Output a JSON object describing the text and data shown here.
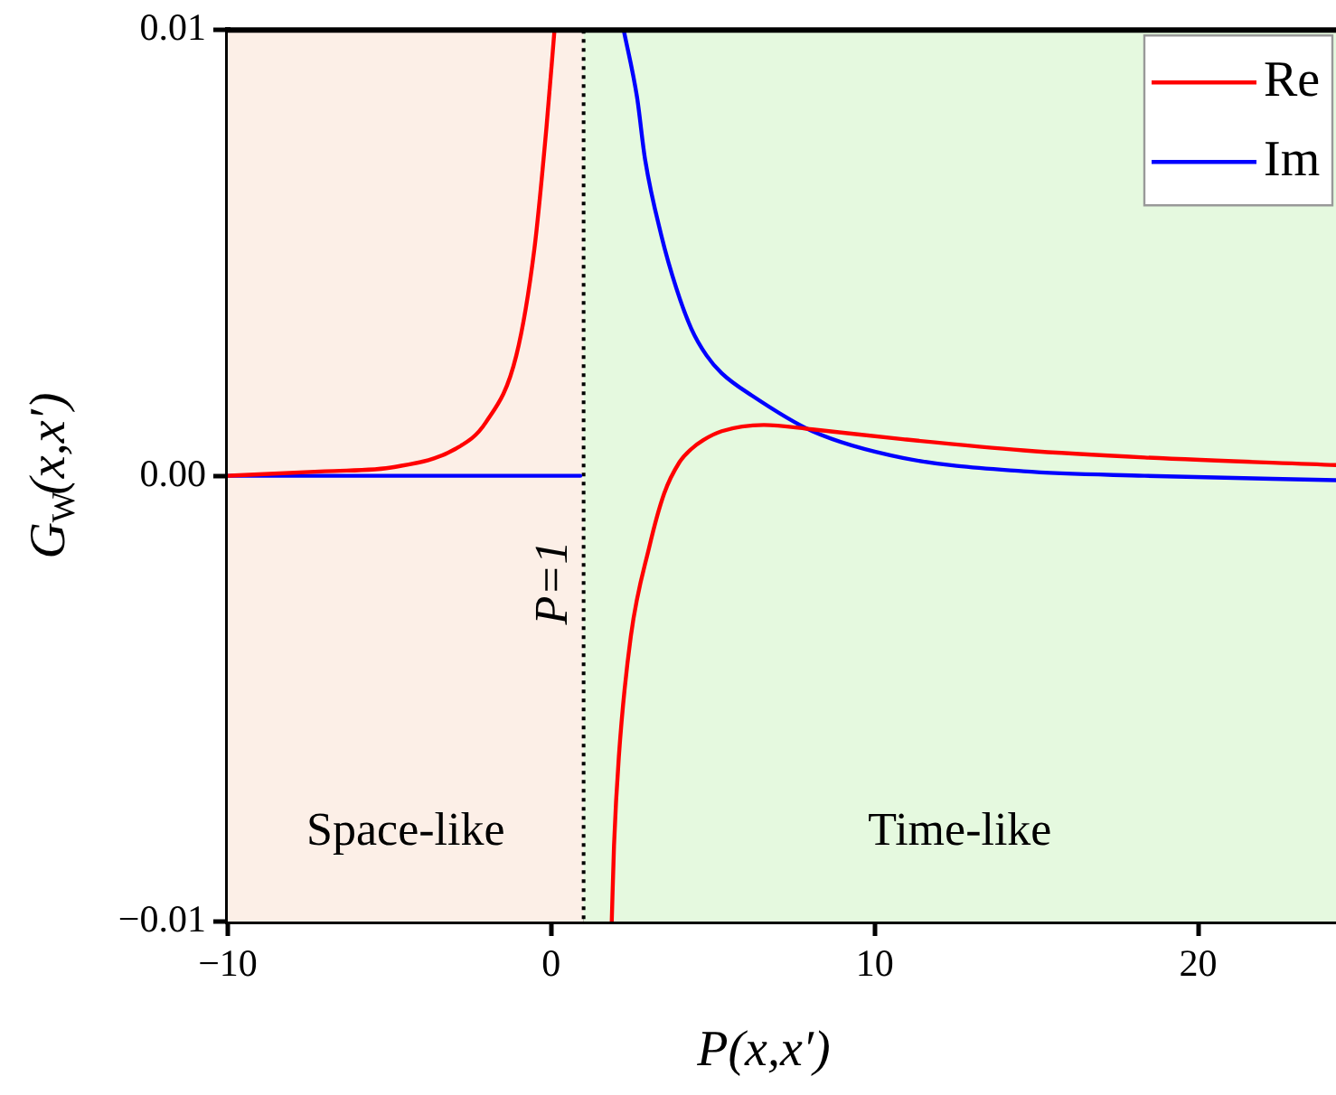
{
  "chart_data": {
    "type": "line",
    "xlabel": "P(x,x′)",
    "ylabel": "G$_{W}$(x,x′)",
    "xlim": [
      -10,
      24.26
    ],
    "xticks": [
      {
        "value": -10,
        "label": "−10"
      },
      0,
      10,
      20
    ],
    "ylim": [
      -0.01,
      0.01
    ],
    "yticks": [
      {
        "value": -0.01,
        "label": "−0.01"
      },
      {
        "value": 0,
        "label": "0.00"
      },
      0.01
    ],
    "series": [
      {
        "name": "Re",
        "color": "#ff0000",
        "x": [
          -10,
          -7,
          -4.82,
          -2.97,
          -2.02,
          -1.08,
          -0.52,
          -0.15,
          0.1,
          1,
          1.87,
          1.94,
          2.09,
          2.46,
          3.03,
          3.49,
          3.96,
          4.33,
          4.7,
          5.27,
          6.57,
          8.07,
          10.87,
          14.6,
          18.34,
          24.26
        ],
        "values": [
          0,
          0.0001,
          0.0002,
          0.0006,
          0.0012,
          0.0027,
          0.0051,
          0.0078,
          0.01,
          null,
          -0.01,
          -0.0083,
          -0.0063,
          -0.0036,
          -0.0016,
          -0.0004,
          0.0003,
          0.0006,
          0.0008,
          0.001,
          0.00114,
          0.00104,
          0.00082,
          0.00057,
          0.00041,
          0.00024
        ]
      },
      {
        "name": "Im",
        "color": "#0000ff",
        "x": [
          -10,
          0.9,
          1,
          2.24,
          2.65,
          2.9,
          3.4,
          3.87,
          4.33,
          4.8,
          5.27,
          6.2,
          8.07,
          10.87,
          14.6,
          18.34,
          24.26
        ],
        "values": [
          0,
          0,
          null,
          0.01,
          0.0085,
          0.0071,
          0.0054,
          0.0042,
          0.0033,
          0.0027,
          0.0023,
          0.0018,
          0.001,
          0.0004,
          0.0001,
          0,
          -0.0001
        ]
      }
    ],
    "bands": [
      {
        "axis": "x",
        "from": -10,
        "to": 1,
        "label": "Space-like",
        "color": "#fcefe7"
      },
      {
        "axis": "x",
        "from": 1,
        "to": 24.26,
        "label": "Time-like",
        "color": "#e5f9df"
      }
    ],
    "ref_lines": [
      {
        "axis": "x",
        "value": 1,
        "label": "P=1",
        "color": "#000000",
        "line_style": "dotted"
      }
    ],
    "legend": "top right",
    "grid": false,
    "line_style": "solid",
    "marker": "none"
  }
}
